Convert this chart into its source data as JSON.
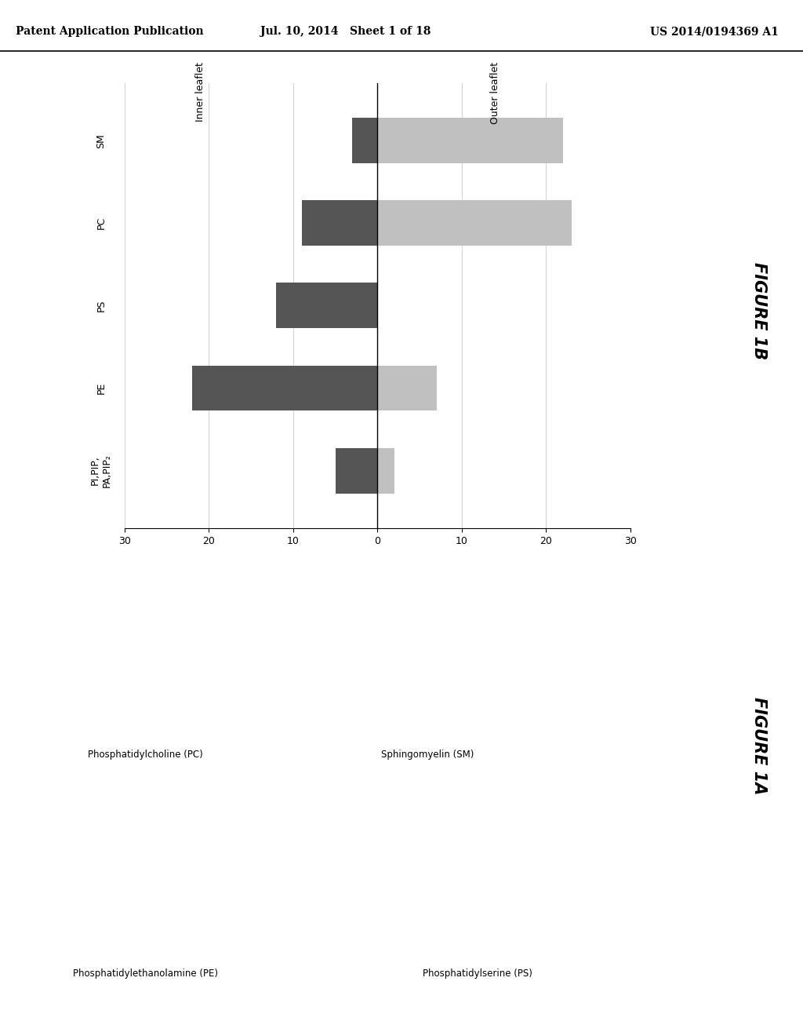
{
  "header": {
    "left": "Patent Application Publication",
    "center": "Jul. 10, 2014   Sheet 1 of 18",
    "right": "US 2014/0194369 A1"
  },
  "chart": {
    "categories": [
      "PI,PIP,\nPA,PIP₂",
      "PE",
      "PS",
      "PC",
      "SM"
    ],
    "outer_leaflet_values": [
      2,
      7,
      0,
      23,
      22
    ],
    "inner_leaflet_values": [
      -5,
      -22,
      -12,
      -9,
      -3
    ],
    "outer_color": "#c0c0c0",
    "inner_color": "#555555",
    "xlim": [
      -30,
      30
    ],
    "xticks": [
      -30,
      -20,
      -10,
      0,
      10,
      20,
      30
    ],
    "outer_leaflet_label": "Outer leaflet",
    "inner_leaflet_label": "Inner leaflet",
    "figure_label": "FIGURE 1B",
    "vlines_gray": [
      -20,
      -10,
      10,
      20
    ],
    "vline_black": 0,
    "bar_height": 0.55
  },
  "figure1a_label": "FIGURE 1A",
  "background_color": "#ffffff"
}
